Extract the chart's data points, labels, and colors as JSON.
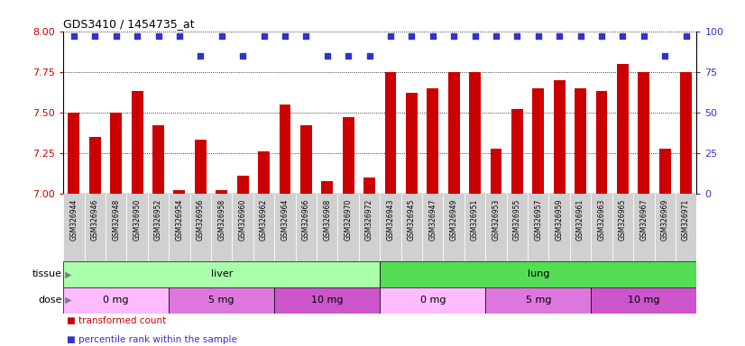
{
  "title": "GDS3410 / 1454735_at",
  "samples": [
    "GSM326944",
    "GSM326946",
    "GSM326948",
    "GSM326950",
    "GSM326952",
    "GSM326954",
    "GSM326956",
    "GSM326958",
    "GSM326960",
    "GSM326962",
    "GSM326964",
    "GSM326966",
    "GSM326968",
    "GSM326970",
    "GSM326972",
    "GSM326943",
    "GSM326945",
    "GSM326947",
    "GSM326949",
    "GSM326951",
    "GSM326953",
    "GSM326955",
    "GSM326957",
    "GSM326959",
    "GSM326961",
    "GSM326963",
    "GSM326965",
    "GSM326967",
    "GSM326969",
    "GSM326971"
  ],
  "bar_values": [
    7.5,
    7.35,
    7.5,
    7.63,
    7.42,
    7.02,
    7.33,
    7.02,
    7.11,
    7.26,
    7.55,
    7.42,
    7.08,
    7.47,
    7.1,
    7.75,
    7.62,
    7.65,
    7.75,
    7.75,
    7.28,
    7.52,
    7.65,
    7.7,
    7.65,
    7.63,
    7.8,
    7.75,
    7.28,
    7.75
  ],
  "percentile_values": [
    97,
    97,
    97,
    97,
    97,
    97,
    85,
    97,
    85,
    97,
    97,
    97,
    85,
    85,
    85,
    97,
    97,
    97,
    97,
    97,
    97,
    97,
    97,
    97,
    97,
    97,
    97,
    97,
    85,
    97
  ],
  "bar_color": "#cc0000",
  "dot_color": "#3333cc",
  "ylim_left": [
    7.0,
    8.0
  ],
  "ylim_right": [
    0,
    100
  ],
  "yticks_left": [
    7.0,
    7.25,
    7.5,
    7.75,
    8.0
  ],
  "yticks_right": [
    0,
    25,
    50,
    75,
    100
  ],
  "gridlines": [
    7.25,
    7.5,
    7.75
  ],
  "tissue_groups": [
    {
      "label": "liver",
      "start": 0,
      "end": 15,
      "color": "#aaffaa"
    },
    {
      "label": "lung",
      "start": 15,
      "end": 30,
      "color": "#55dd55"
    }
  ],
  "dose_groups": [
    {
      "label": "0 mg",
      "start": 0,
      "end": 5,
      "color": "#ffbbff"
    },
    {
      "label": "5 mg",
      "start": 5,
      "end": 10,
      "color": "#dd77dd"
    },
    {
      "label": "10 mg",
      "start": 10,
      "end": 15,
      "color": "#cc55cc"
    },
    {
      "label": "0 mg",
      "start": 15,
      "end": 20,
      "color": "#ffbbff"
    },
    {
      "label": "5 mg",
      "start": 20,
      "end": 25,
      "color": "#dd77dd"
    },
    {
      "label": "10 mg",
      "start": 25,
      "end": 30,
      "color": "#cc55cc"
    }
  ],
  "tissue_label": "tissue",
  "dose_label": "dose",
  "xticklabel_bg": "#d0d0d0",
  "legend": [
    {
      "label": "transformed count",
      "color": "#cc0000"
    },
    {
      "label": "percentile rank within the sample",
      "color": "#3333cc"
    }
  ]
}
